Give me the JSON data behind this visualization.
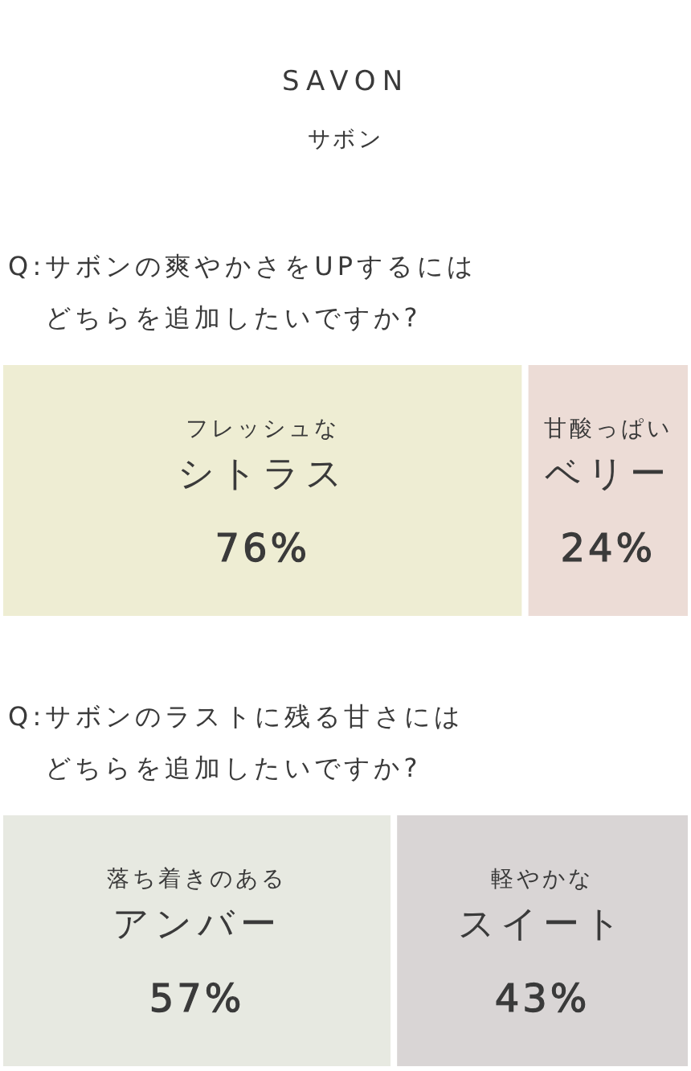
{
  "chart_data": [
    {
      "type": "other",
      "title": "SAVON",
      "subtitle": "サボン"
    },
    {
      "type": "bar",
      "title": "Q:サボンの爽やかさをUPするにはどちらを追加したいですか?",
      "orientation": "horizontal",
      "stacked": true,
      "categories": [
        null
      ],
      "series": [
        {
          "name": "フレッシュなシトラス",
          "color": "#eeedd3",
          "values": [
            76
          ],
          "value_labels": [
            "76%"
          ]
        },
        {
          "name": "甘酸っぱいベリー",
          "color": "#ecdcd6",
          "values": [
            24
          ],
          "value_labels": [
            "24%"
          ]
        }
      ]
    },
    {
      "type": "bar",
      "title": "Q:サボンのラストに残る甘さにはどちらを追加したいですか?",
      "orientation": "horizontal",
      "stacked": true,
      "categories": [
        null
      ],
      "series": [
        {
          "name": "落ち着きのあるアンバー",
          "color": "#e7e9e1",
          "values": [
            57
          ],
          "value_labels": [
            "57%"
          ]
        },
        {
          "name": "軽やかなスイート",
          "color": "#d9d5d5",
          "values": [
            43
          ],
          "value_labels": [
            "43%"
          ]
        }
      ]
    }
  ]
}
